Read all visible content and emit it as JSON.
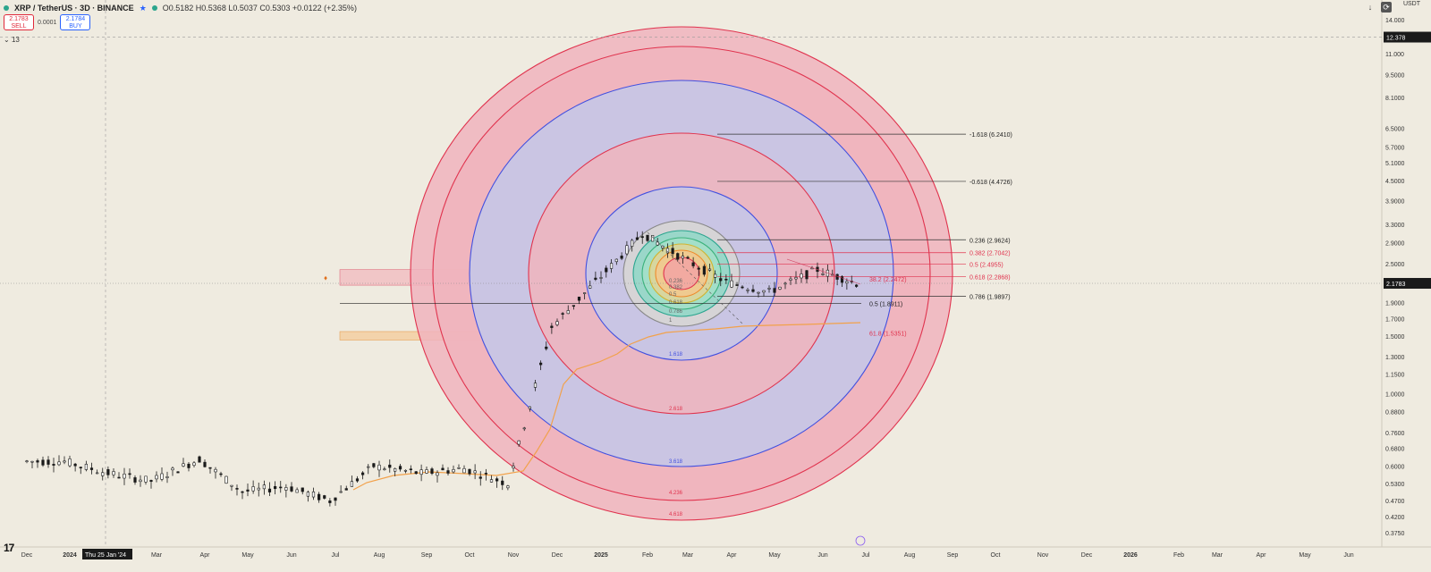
{
  "header": {
    "symbol": "XRP / TetherUS · 3D · BINANCE",
    "ohlc": "O0.5182 H0.5368 L0.5037 C0.5303 +0.0122 (+2.35%)"
  },
  "trade": {
    "sell_price": "2.1783",
    "sell_label": "SELL",
    "spread": "0.0001",
    "buy_price": "2.1784",
    "buy_label": "BUY"
  },
  "indicator_count": "13",
  "currency": "USDT",
  "logo": "17",
  "colors": {
    "background": "#efebe0",
    "red_ring": "#e0334e",
    "blue_ring": "#4250e0",
    "orange_ma": "#f2a14a",
    "candle": "#1a1a1a"
  },
  "chart_data": {
    "type": "candlestick",
    "y_scale": "log",
    "price_axis_labels": [
      "14.000",
      "12.378",
      "11.000",
      "9.5000",
      "8.1000",
      "6.5000",
      "5.7000",
      "5.1000",
      "4.5000",
      "3.9000",
      "3.3000",
      "2.9000",
      "2.5000",
      "2.178",
      "1.9000",
      "1.7000",
      "1.5000",
      "1.3000",
      "1.1500",
      "1.0000",
      "0.8800",
      "0.7600",
      "0.6800",
      "0.6000",
      "0.5300",
      "0.4700",
      "0.4200",
      "0.3750"
    ],
    "time_axis_labels": [
      "Dec",
      "2024",
      "Thu 25 Jan '24",
      "Mar",
      "Apr",
      "May",
      "Jun",
      "Jul",
      "Aug",
      "Sep",
      "Oct",
      "Nov",
      "Dec",
      "2025",
      "Feb",
      "Mar",
      "Apr",
      "May",
      "Jun",
      "Jul",
      "Aug",
      "Sep",
      "Oct",
      "Nov",
      "Dec",
      "2026",
      "Feb",
      "Mar",
      "Apr",
      "May",
      "Jun"
    ],
    "current_price": "2.1783",
    "crosshair_price": "12.378",
    "fib_extension_levels": [
      {
        "label": "-1.618 (6.2410)",
        "value": 6.241
      },
      {
        "label": "-0.618 (4.4726)",
        "value": 4.4726
      },
      {
        "label": "0.236 (2.9624)",
        "value": 2.9624
      },
      {
        "label": "0.382 (2.7042)",
        "value": 2.7042
      },
      {
        "label": "0.5 (2.4955)",
        "value": 2.4955
      },
      {
        "label": "0.618 (2.2868)",
        "value": 2.2868
      },
      {
        "label": "0.786 (1.9897)",
        "value": 1.9897
      }
    ],
    "zone_labels": [
      {
        "label": "38.2 (2.2472)",
        "value": 2.2472
      },
      {
        "label": "0.5 (1.8911)",
        "value": 1.8911
      },
      {
        "label": "61.8 (1.5351)",
        "value": 1.5351
      }
    ],
    "fib_circle_labels": [
      "0.236",
      "0.382",
      "0.5",
      "0.618",
      "0.786",
      "1",
      "1.618",
      "2.618",
      "3.618",
      "4.236",
      "4.618"
    ],
    "price_series": [
      {
        "date": "2023-12",
        "close": 0.62
      },
      {
        "date": "2024-01",
        "close": 0.57
      },
      {
        "date": "2024-02",
        "close": 0.54
      },
      {
        "date": "2024-03",
        "close": 0.63
      },
      {
        "date": "2024-04",
        "close": 0.5
      },
      {
        "date": "2024-05",
        "close": 0.52
      },
      {
        "date": "2024-06",
        "close": 0.47
      },
      {
        "date": "2024-07",
        "close": 0.6
      },
      {
        "date": "2024-08",
        "close": 0.57
      },
      {
        "date": "2024-09",
        "close": 0.59
      },
      {
        "date": "2024-10",
        "close": 0.53
      },
      {
        "date": "2024-11",
        "close": 1.6
      },
      {
        "date": "2024-12",
        "close": 2.2
      },
      {
        "date": "2025-01",
        "close": 3.1
      },
      {
        "date": "2025-02",
        "close": 2.6
      },
      {
        "date": "2025-03",
        "close": 2.2
      },
      {
        "date": "2025-04",
        "close": 2.05
      },
      {
        "date": "2025-05",
        "close": 2.4
      },
      {
        "date": "2025-06",
        "close": 2.18
      }
    ]
  }
}
